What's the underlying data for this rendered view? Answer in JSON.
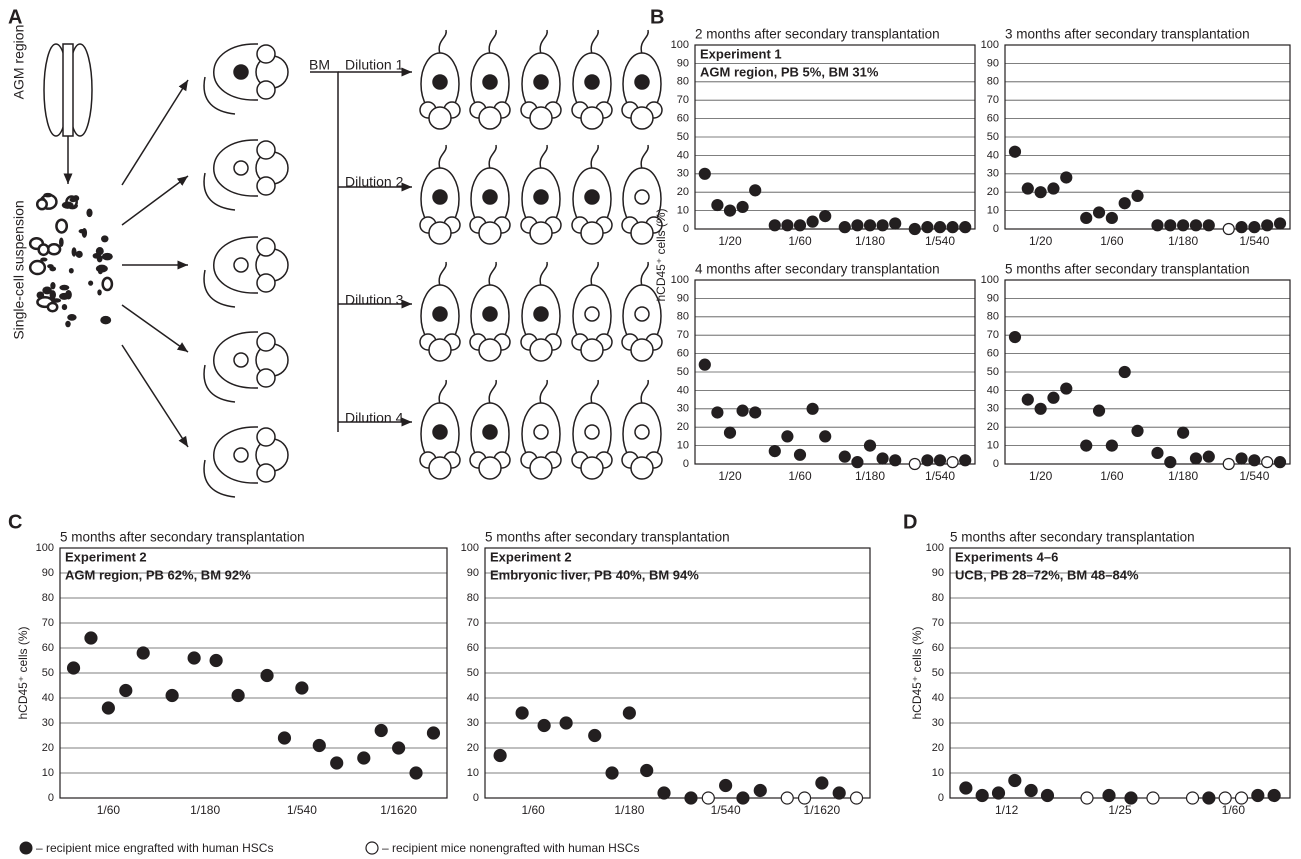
{
  "panel_labels": [
    "A",
    "B",
    "C",
    "D"
  ],
  "panel_a": {
    "tissue": "AGM region",
    "suspension": "Single-cell suspension",
    "source": "BM",
    "dilutions": [
      "Dilution 1",
      "Dilution 2",
      "Dilution 3",
      "Dilution 4"
    ]
  },
  "legend": {
    "filled": "– recipient mice engrafted with human HSCs",
    "open": "– recipient mice nonengrafted with human HSCs"
  },
  "chart_data": [
    {
      "type": "scatter",
      "title": "2 months after secondary transplantation",
      "ylabel": "hCD45⁺ cells (%)",
      "annotations": [
        "Experiment 1",
        "AGM region, PB 5%, BM 31%"
      ],
      "categories": [
        "1/20",
        "1/60",
        "1/180",
        "1/540"
      ],
      "ylim": [
        0,
        100
      ],
      "yticks": [
        0,
        10,
        20,
        30,
        40,
        50,
        60,
        70,
        80,
        90,
        100
      ],
      "series": [
        {
          "color": "#231f20",
          "values": [
            [
              30,
              13,
              10,
              12,
              21
            ],
            [
              2,
              2,
              2,
              4,
              7
            ],
            [
              1,
              2,
              2,
              2,
              3
            ],
            [
              0,
              1,
              1,
              1,
              1
            ]
          ]
        }
      ]
    },
    {
      "type": "scatter",
      "title": "3 months after secondary transplantation",
      "categories": [
        "1/20",
        "1/60",
        "1/180",
        "1/540"
      ],
      "ylim": [
        0,
        100
      ],
      "yticks": [
        0,
        10,
        20,
        30,
        40,
        50,
        60,
        70,
        80,
        90,
        100
      ],
      "series": [
        {
          "color": "#231f20",
          "values": [
            [
              42,
              22,
              20,
              22,
              28
            ],
            [
              6,
              9,
              6,
              14,
              18
            ],
            [
              2,
              2,
              2,
              2,
              2
            ],
            [
              null,
              1,
              1,
              2,
              3
            ]
          ]
        },
        {
          "color": "#ffffff",
          "values": [
            [
              null,
              null,
              null,
              null,
              null
            ],
            [
              null,
              null,
              null,
              null,
              null
            ],
            [
              null,
              null,
              null,
              null,
              null
            ],
            [
              0,
              null,
              null,
              null,
              null
            ]
          ]
        }
      ]
    },
    {
      "type": "scatter",
      "title": "4 months after secondary transplantation",
      "categories": [
        "1/20",
        "1/60",
        "1/180",
        "1/540"
      ],
      "ylim": [
        0,
        100
      ],
      "yticks": [
        0,
        10,
        20,
        30,
        40,
        50,
        60,
        70,
        80,
        90,
        100
      ],
      "series": [
        {
          "color": "#231f20",
          "values": [
            [
              54,
              28,
              17,
              29,
              28
            ],
            [
              7,
              15,
              5,
              30,
              15
            ],
            [
              4,
              1,
              10,
              3,
              2
            ],
            [
              null,
              2,
              2,
              null,
              2
            ]
          ]
        },
        {
          "color": "#ffffff",
          "values": [
            [
              null,
              null,
              null,
              null,
              null
            ],
            [
              null,
              null,
              null,
              null,
              null
            ],
            [
              null,
              null,
              null,
              null,
              null
            ],
            [
              0,
              null,
              null,
              1,
              null
            ]
          ]
        }
      ]
    },
    {
      "type": "scatter",
      "title": "5 months after secondary transplantation",
      "categories": [
        "1/20",
        "1/60",
        "1/180",
        "1/540"
      ],
      "ylim": [
        0,
        100
      ],
      "yticks": [
        0,
        10,
        20,
        30,
        40,
        50,
        60,
        70,
        80,
        90,
        100
      ],
      "series": [
        {
          "color": "#231f20",
          "values": [
            [
              69,
              35,
              30,
              36,
              41
            ],
            [
              10,
              29,
              10,
              50,
              18
            ],
            [
              6,
              1,
              17,
              3,
              4
            ],
            [
              null,
              3,
              2,
              null,
              1
            ]
          ]
        },
        {
          "color": "#ffffff",
          "values": [
            [
              null,
              null,
              null,
              null,
              null
            ],
            [
              null,
              null,
              null,
              null,
              null
            ],
            [
              null,
              null,
              null,
              null,
              null
            ],
            [
              0,
              null,
              null,
              1,
              null
            ]
          ]
        }
      ]
    },
    {
      "type": "scatter",
      "title": "5 months after secondary transplantation",
      "ylabel": "hCD45⁺ cells (%)",
      "annotations": [
        "Experiment 2",
        "AGM region, PB 62%, BM 92%"
      ],
      "categories": [
        "1/60",
        "1/180",
        "1/540",
        "1/1620"
      ],
      "ylim": [
        0,
        100
      ],
      "yticks": [
        0,
        10,
        20,
        30,
        40,
        50,
        60,
        70,
        80,
        90,
        100
      ],
      "series": [
        {
          "color": "#231f20",
          "values": [
            [
              52,
              64,
              36,
              43,
              58
            ],
            [
              41,
              56,
              55,
              41
            ],
            [
              49,
              24,
              44,
              21,
              14
            ],
            [
              16,
              27,
              20,
              10,
              26
            ]
          ]
        }
      ]
    },
    {
      "type": "scatter",
      "title": "5 months after secondary transplantation",
      "annotations": [
        "Experiment 2",
        "Embryonic liver, PB 40%, BM 94%"
      ],
      "categories": [
        "1/60",
        "1/180",
        "1/540",
        "1/1620"
      ],
      "ylim": [
        0,
        100
      ],
      "yticks": [
        0,
        10,
        20,
        30,
        40,
        50,
        60,
        70,
        80,
        90,
        100
      ],
      "series": [
        {
          "color": "#231f20",
          "values": [
            [
              17,
              34,
              29,
              30
            ],
            [
              25,
              10,
              34,
              11,
              2
            ],
            [
              0,
              null,
              5,
              0,
              3
            ],
            [
              null,
              null,
              6,
              2,
              null
            ]
          ]
        },
        {
          "color": "#ffffff",
          "values": [
            [
              null,
              null,
              null,
              null
            ],
            [
              null,
              null,
              null,
              null,
              null
            ],
            [
              null,
              0,
              null,
              null,
              null
            ],
            [
              0,
              0,
              null,
              null,
              0
            ]
          ]
        }
      ]
    },
    {
      "type": "scatter",
      "title": "5 months after secondary transplantation",
      "ylabel": "hCD45⁺ cells (%)",
      "annotations": [
        "Experiments 4–6",
        "UCB, PB 28–72%, BM 48–84%"
      ],
      "categories": [
        "1/12",
        "1/25",
        "1/60"
      ],
      "ylim": [
        0,
        100
      ],
      "yticks": [
        0,
        10,
        20,
        30,
        40,
        50,
        60,
        70,
        80,
        90,
        100
      ],
      "series": [
        {
          "color": "#231f20",
          "values": [
            [
              4,
              1,
              2,
              7,
              3,
              1
            ],
            [
              null,
              1,
              0,
              null
            ],
            [
              null,
              0,
              null,
              null,
              1,
              1
            ]
          ]
        },
        {
          "color": "#ffffff",
          "values": [
            [
              null,
              null,
              null,
              null,
              null,
              null
            ],
            [
              0,
              null,
              null,
              0
            ],
            [
              0,
              null,
              0,
              0,
              null,
              null
            ]
          ]
        }
      ]
    }
  ]
}
